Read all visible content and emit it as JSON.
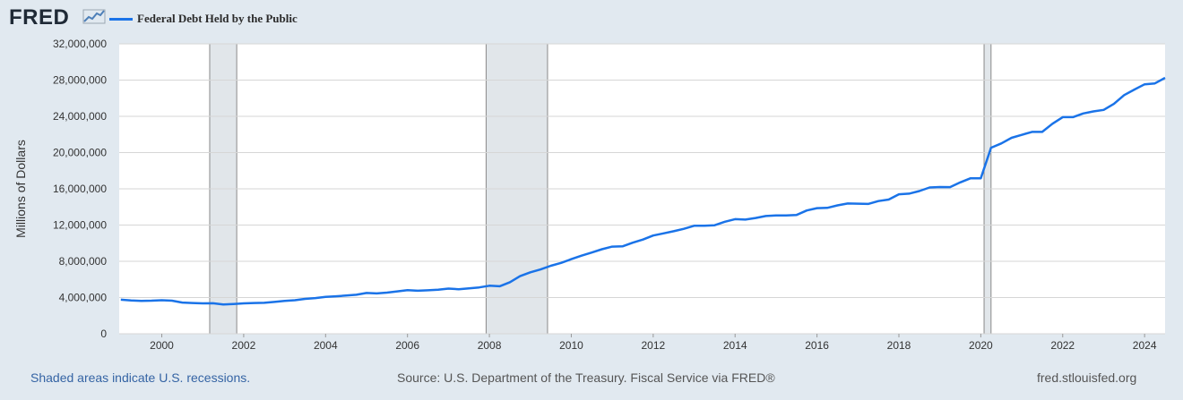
{
  "header": {
    "logo_text": "FRED",
    "logo_icon": "line-chart-icon"
  },
  "legend": {
    "label": "Federal Debt Held by the Public",
    "color": "#1a73e8"
  },
  "footer": {
    "recession_note": "Shaded areas indicate U.S. recessions.",
    "source": "Source: U.S. Department of the Treasury. Fiscal Service via FRED®",
    "site": "fred.stlouisfed.org"
  },
  "chart_data": {
    "type": "line",
    "xlabel": "",
    "ylabel": "Millions of Dollars",
    "xlim": [
      1998.96,
      2024.5
    ],
    "ylim": [
      0,
      32000000
    ],
    "x_ticks": [
      "2000",
      "2002",
      "2004",
      "2006",
      "2008",
      "2010",
      "2012",
      "2014",
      "2016",
      "2018",
      "2020",
      "2022",
      "2024"
    ],
    "y_ticks": [
      "0",
      "4,000,000",
      "8,000,000",
      "12,000,000",
      "16,000,000",
      "20,000,000",
      "24,000,000",
      "28,000,000",
      "32,000,000"
    ],
    "grid": true,
    "legend_position": "top-left",
    "recessions": [
      [
        2001.17,
        2001.83
      ],
      [
        2007.92,
        2009.42
      ],
      [
        2020.08,
        2020.25
      ]
    ],
    "series": [
      {
        "name": "Federal Debt Held by the Public",
        "color": "#1a73e8",
        "x": [
          1999.0,
          1999.25,
          1999.5,
          1999.75,
          2000.0,
          2000.25,
          2000.5,
          2000.75,
          2001.0,
          2001.25,
          2001.5,
          2001.75,
          2002.0,
          2002.25,
          2002.5,
          2002.75,
          2003.0,
          2003.25,
          2003.5,
          2003.75,
          2004.0,
          2004.25,
          2004.5,
          2004.75,
          2005.0,
          2005.25,
          2005.5,
          2005.75,
          2006.0,
          2006.25,
          2006.5,
          2006.75,
          2007.0,
          2007.25,
          2007.5,
          2007.75,
          2008.0,
          2008.25,
          2008.5,
          2008.75,
          2009.0,
          2009.25,
          2009.5,
          2009.75,
          2010.0,
          2010.25,
          2010.5,
          2010.75,
          2011.0,
          2011.25,
          2011.5,
          2011.75,
          2012.0,
          2012.25,
          2012.5,
          2012.75,
          2013.0,
          2013.25,
          2013.5,
          2013.75,
          2014.0,
          2014.25,
          2014.5,
          2014.75,
          2015.0,
          2015.25,
          2015.5,
          2015.75,
          2016.0,
          2016.25,
          2016.5,
          2016.75,
          2017.0,
          2017.25,
          2017.5,
          2017.75,
          2018.0,
          2018.25,
          2018.5,
          2018.75,
          2019.0,
          2019.25,
          2019.5,
          2019.75,
          2020.0,
          2020.25,
          2020.5,
          2020.75,
          2021.0,
          2021.25,
          2021.5,
          2021.75,
          2022.0,
          2022.25,
          2022.5,
          2022.75,
          2023.0,
          2023.25,
          2023.5,
          2023.75,
          2024.0,
          2024.25,
          2024.5
        ],
        "values": [
          3760000,
          3680000,
          3630000,
          3650000,
          3700000,
          3650000,
          3450000,
          3400000,
          3360000,
          3370000,
          3240000,
          3290000,
          3360000,
          3400000,
          3420000,
          3520000,
          3620000,
          3700000,
          3850000,
          3940000,
          4080000,
          4140000,
          4220000,
          4310000,
          4500000,
          4450000,
          4540000,
          4680000,
          4820000,
          4750000,
          4800000,
          4860000,
          4990000,
          4920000,
          5020000,
          5120000,
          5300000,
          5240000,
          5690000,
          6360000,
          6790000,
          7100000,
          7510000,
          7820000,
          8240000,
          8620000,
          8970000,
          9330000,
          9620000,
          9650000,
          10050000,
          10400000,
          10840000,
          11080000,
          11320000,
          11590000,
          11920000,
          11920000,
          11980000,
          12370000,
          12650000,
          12600000,
          12780000,
          13000000,
          13070000,
          13070000,
          13120000,
          13610000,
          13870000,
          13900000,
          14170000,
          14380000,
          14360000,
          14330000,
          14650000,
          14810000,
          15400000,
          15470000,
          15750000,
          16150000,
          16200000,
          16190000,
          16710000,
          17170000,
          17170000,
          20530000,
          21010000,
          21630000,
          21960000,
          22280000,
          22280000,
          23180000,
          23910000,
          23910000,
          24320000,
          24540000,
          24710000,
          25370000,
          26340000,
          26950000,
          27540000,
          27630000,
          28250000
        ]
      }
    ]
  }
}
